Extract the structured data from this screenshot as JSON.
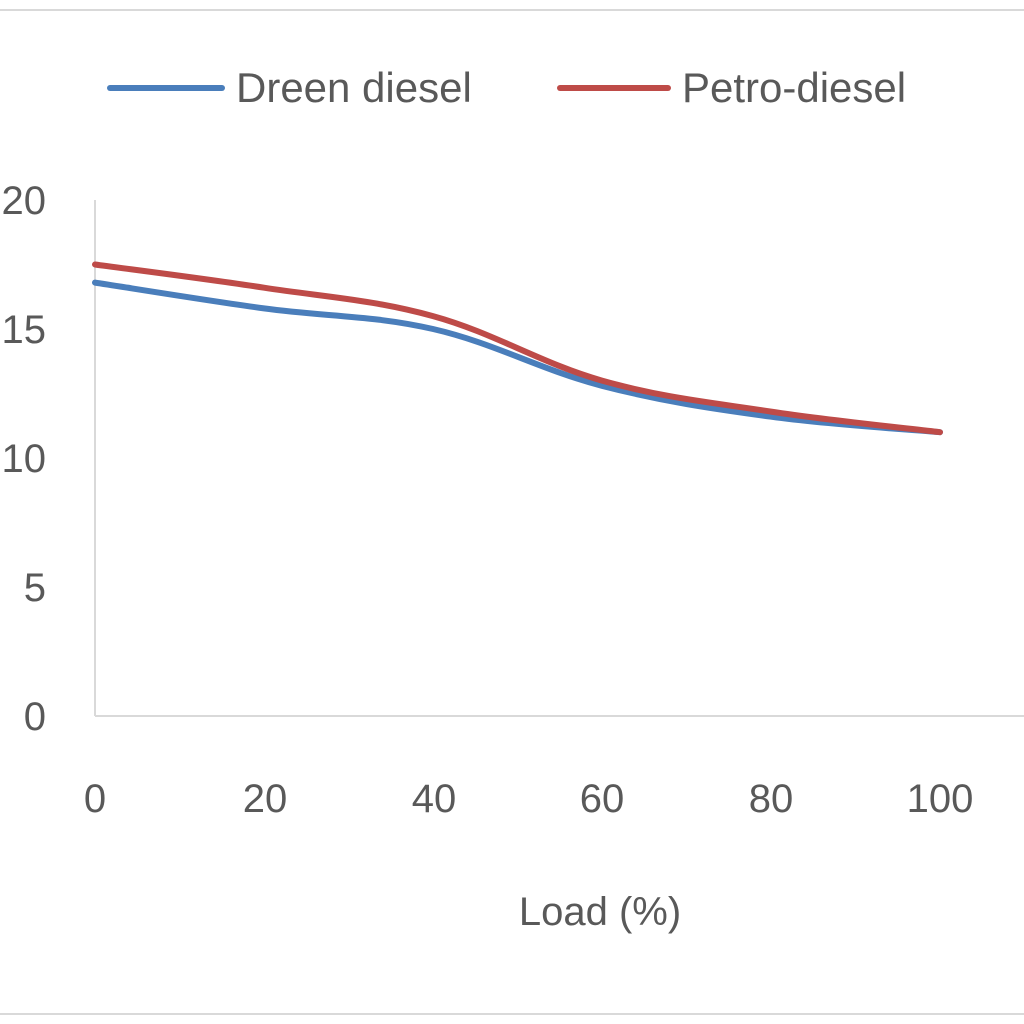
{
  "chart_data": {
    "type": "line",
    "title": "",
    "xlabel": "Load (%)",
    "ylabel": "",
    "x": [
      0,
      20,
      40,
      60,
      80,
      100
    ],
    "xlim": [
      0,
      100
    ],
    "ylim": [
      0,
      20
    ],
    "xticks": [
      "0",
      "20",
      "40",
      "60",
      "80",
      "100"
    ],
    "yticks": [
      "0",
      "5",
      "10",
      "15",
      "20"
    ],
    "grid": false,
    "legend": "top",
    "series": [
      {
        "name": "Dreen diesel",
        "color": "#4a7ebb",
        "values": [
          16.8,
          15.8,
          15.0,
          12.8,
          11.6,
          11.0
        ]
      },
      {
        "name": "Petro-diesel",
        "color": "#be4b48",
        "values": [
          17.5,
          16.6,
          15.5,
          13.0,
          11.8,
          11.0
        ]
      }
    ]
  }
}
